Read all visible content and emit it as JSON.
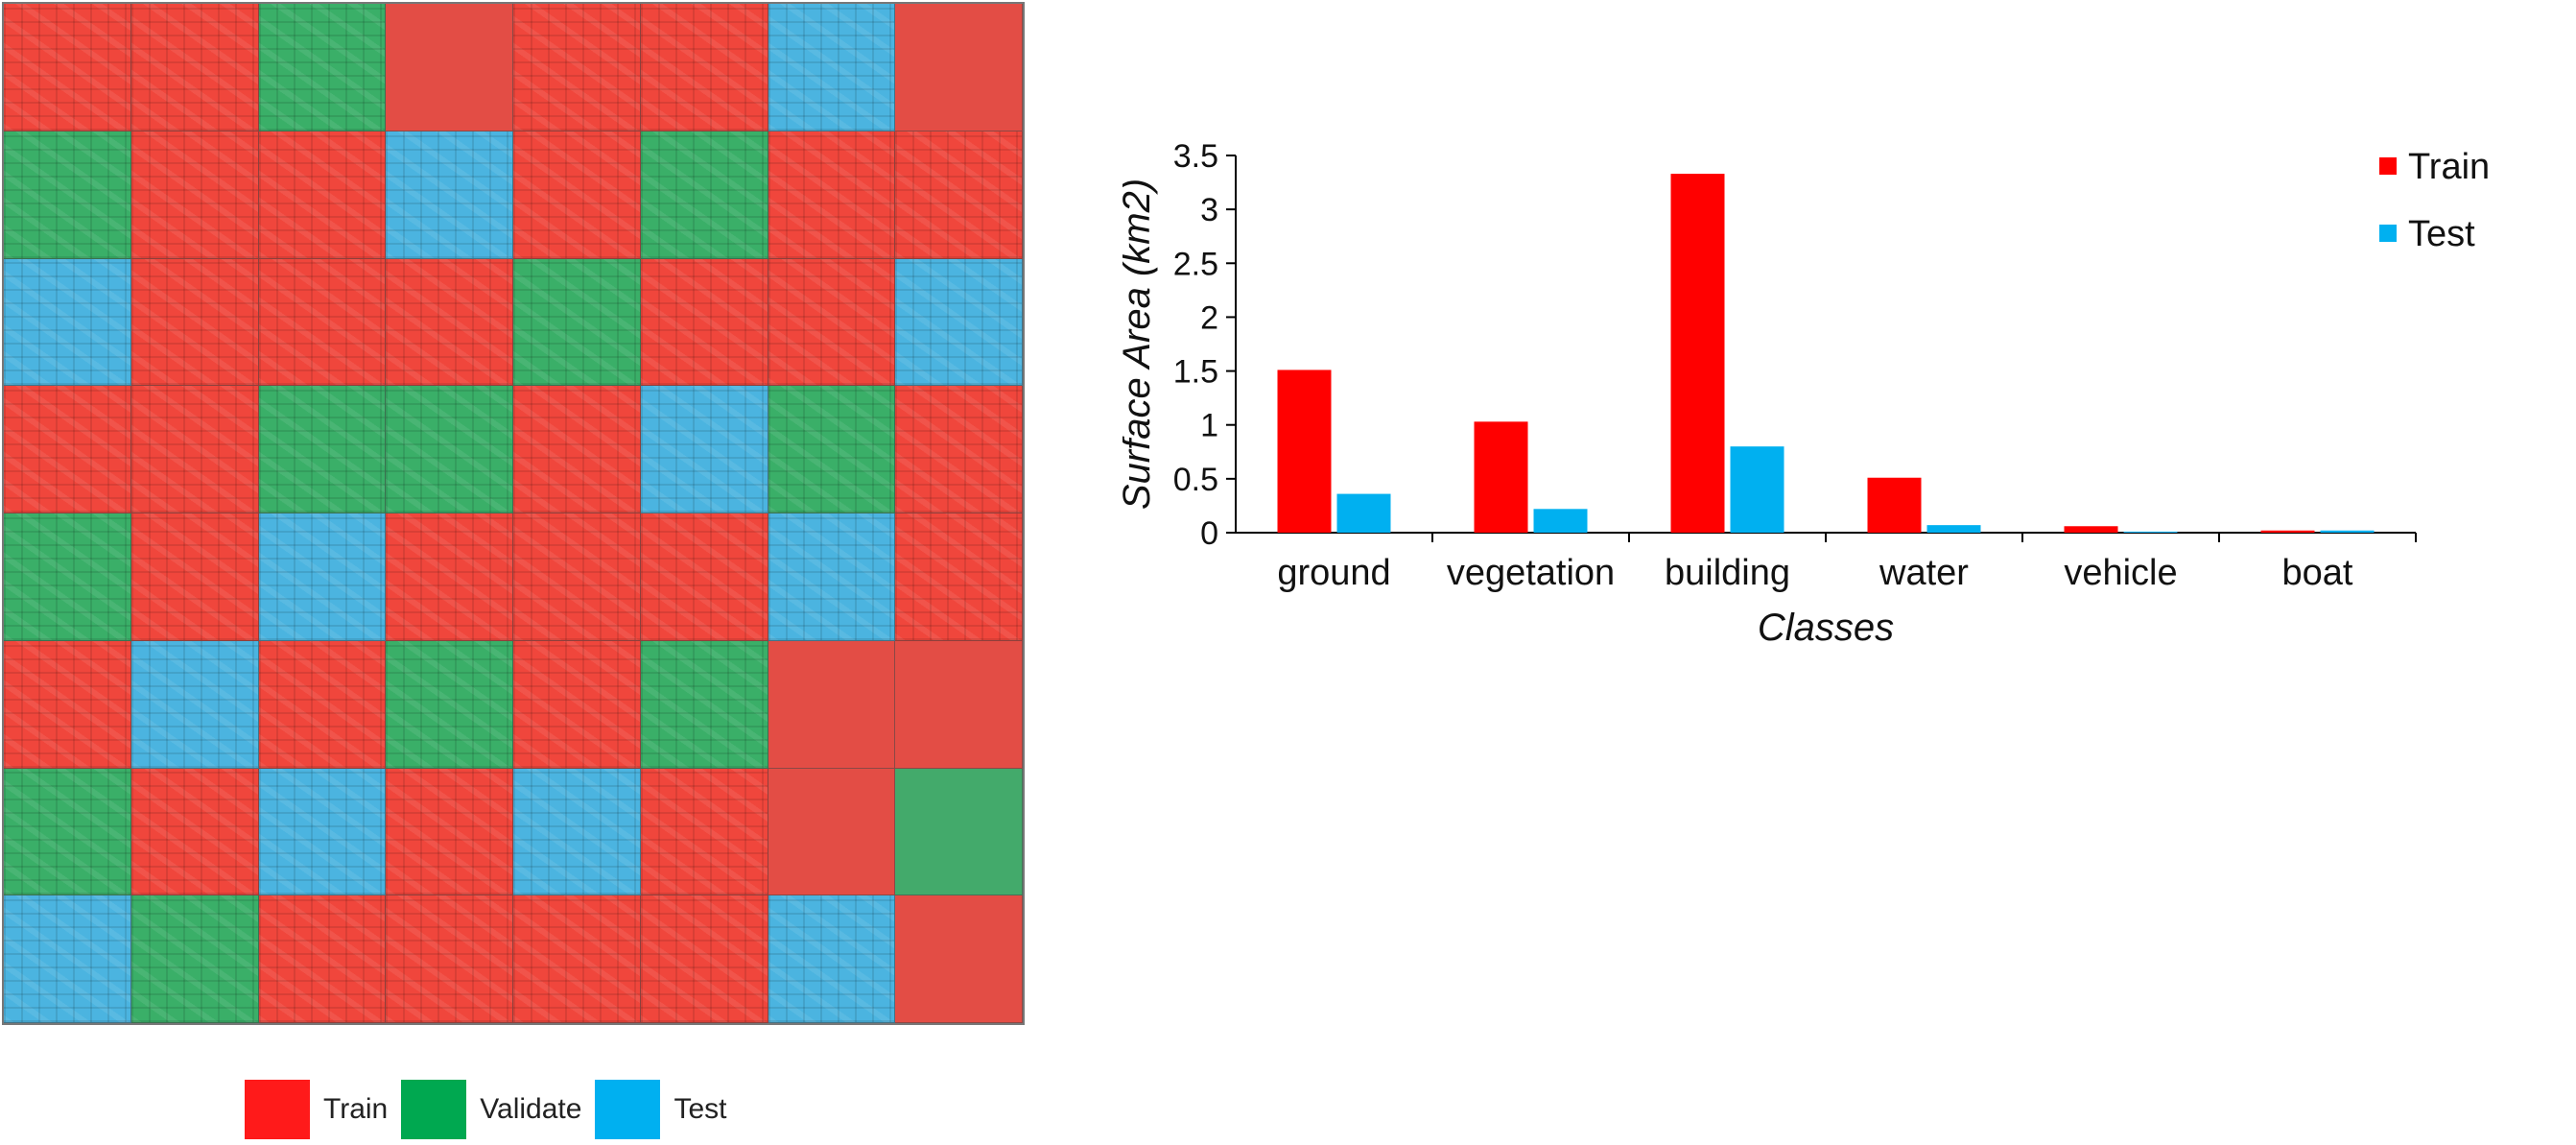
{
  "map": {
    "colors": {
      "train": "#f0463c",
      "validate": "#3aaf68",
      "test": "#4bb4e0"
    },
    "tiles": [
      [
        "train",
        "train",
        "validate",
        "train",
        "train",
        "train",
        "test",
        "train"
      ],
      [
        "validate",
        "train",
        "train",
        "test",
        "train",
        "validate",
        "train",
        "train"
      ],
      [
        "test",
        "train",
        "train",
        "train",
        "validate",
        "train",
        "train",
        "test"
      ],
      [
        "train",
        "train",
        "validate",
        "validate",
        "train",
        "test",
        "validate",
        "train"
      ],
      [
        "validate",
        "train",
        "test",
        "train",
        "train",
        "train",
        "test",
        "train"
      ],
      [
        "train",
        "test",
        "train",
        "validate",
        "train",
        "validate",
        "train",
        "train"
      ],
      [
        "validate",
        "train",
        "test",
        "train",
        "test",
        "train",
        "train",
        "validate"
      ],
      [
        "test",
        "validate",
        "train",
        "train",
        "train",
        "train",
        "test",
        "train"
      ]
    ],
    "open_tiles": [
      [
        0,
        3
      ],
      [
        0,
        7
      ],
      [
        5,
        6
      ],
      [
        5,
        7
      ],
      [
        6,
        6
      ],
      [
        6,
        7
      ],
      [
        7,
        7
      ]
    ],
    "legend": [
      {
        "key": "train",
        "label": "Train",
        "color": "#ff1a1a"
      },
      {
        "key": "validate",
        "label": "Validate",
        "color": "#00a850"
      },
      {
        "key": "test",
        "label": "Test",
        "color": "#00b0f0"
      }
    ]
  },
  "chart_data": {
    "type": "bar",
    "xlabel": "Classes",
    "ylabel": "Surface Area (km2)",
    "ylim": [
      0,
      3.5
    ],
    "yticks": [
      "0",
      "0.5",
      "1",
      "1.5",
      "2",
      "2.5",
      "3",
      "3.5"
    ],
    "legend_position": "top-right",
    "categories": [
      "ground",
      "vegetation",
      "building",
      "water",
      "vehicle",
      "boat"
    ],
    "series": [
      {
        "name": "Train",
        "color": "#ff0000",
        "values": [
          1.51,
          1.03,
          3.33,
          0.51,
          0.06,
          0.02
        ]
      },
      {
        "name": "Test",
        "color": "#00b0f0",
        "values": [
          0.36,
          0.22,
          0.8,
          0.07,
          0.01,
          0.02
        ]
      }
    ]
  }
}
